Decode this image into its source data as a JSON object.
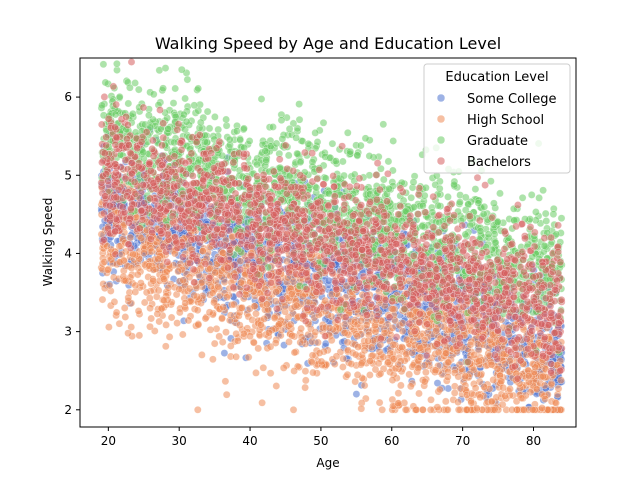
{
  "chart_data": {
    "type": "scatter",
    "title": "Walking Speed by Age and Education Level",
    "xlabel": "Age",
    "ylabel": "Walking Speed",
    "xlim": [
      16,
      86
    ],
    "ylim": [
      1.78,
      6.5
    ],
    "xticks": [
      20,
      30,
      40,
      50,
      60,
      70,
      80
    ],
    "yticks": [
      2,
      3,
      4,
      5,
      6
    ],
    "grid": false,
    "legend": {
      "title": "Education Level",
      "placement": "top-right"
    },
    "series": [
      {
        "name": "Some College",
        "color": "#4c72d0",
        "trend": {
          "start": [
            19,
            4.6
          ],
          "end": [
            84,
            2.75
          ],
          "spread": 0.42
        }
      },
      {
        "name": "High School",
        "color": "#ee8a55",
        "trend": {
          "start": [
            19,
            4.1
          ],
          "end": [
            84,
            2.35
          ],
          "spread": 0.45
        }
      },
      {
        "name": "Graduate",
        "color": "#6acc64",
        "trend": {
          "start": [
            19,
            5.5
          ],
          "end": [
            84,
            3.75
          ],
          "spread": 0.42
        }
      },
      {
        "name": "Bachelors",
        "color": "#d65f5f",
        "trend": {
          "start": [
            19,
            5.05
          ],
          "end": [
            84,
            3.25
          ],
          "spread": 0.42
        }
      }
    ],
    "points_per_series": 1800,
    "clip_min": 2.0,
    "marker_alpha": 0.55
  }
}
